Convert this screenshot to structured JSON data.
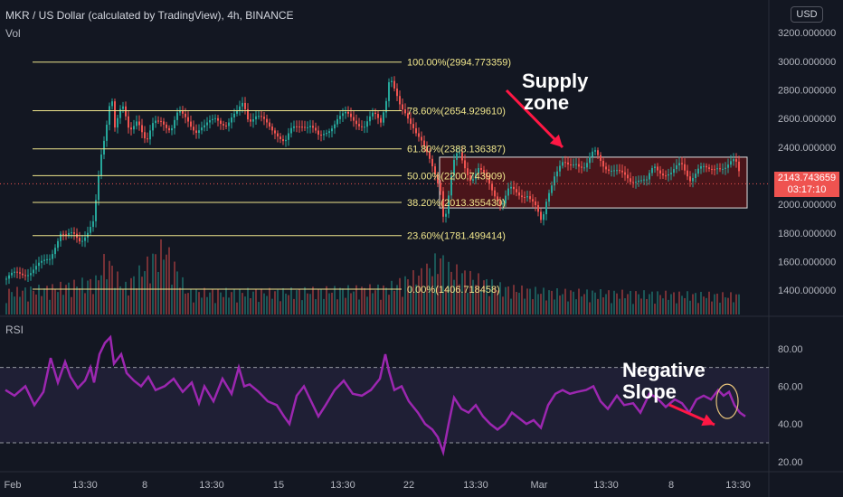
{
  "header": {
    "title": "MKR / US Dollar (calculated by TradingView), 4h, BINANCE",
    "volume_label": "Vol",
    "currency_button": "USD"
  },
  "price_badge": {
    "price": "2143.743659",
    "countdown": "03:17:10"
  },
  "annotations": {
    "supply_line1": "Supply",
    "supply_line2": "zone",
    "slope_line1": "Negative",
    "slope_line2": "Slope"
  },
  "colors": {
    "background": "#131722",
    "up": "#26a69a",
    "down": "#ef5350",
    "fib": "#f0e68c",
    "rsi": "#9c27b0",
    "arrow": "#ff1744"
  },
  "chart_data": [
    {
      "type": "candlestick",
      "title": "MKR / US Dollar (calculated by TradingView), 4h, BINANCE",
      "x_ticks": [
        "Feb",
        "13:30",
        "8",
        "13:30",
        "15",
        "13:30",
        "22",
        "13:30",
        "Mar",
        "13:30",
        "8",
        "13:30"
      ],
      "y_ticks": [
        "1400.000000",
        "1600.000000",
        "1800.000000",
        "2000.000000",
        "2200.000000",
        "2400.000000",
        "2600.000000",
        "2800.000000",
        "3000.000000",
        "3200.000000"
      ],
      "ylim": [
        1230,
        3290
      ],
      "last_price": 2143.743659,
      "fibonacci": [
        {
          "label": "100.00%(2994.773359)",
          "value": 2994.773359
        },
        {
          "label": "78.60%(2654.929610)",
          "value": 2654.92961
        },
        {
          "label": "61.80%(2388.136387)",
          "value": 2388.136387
        },
        {
          "label": "50.00%(2200.743909)",
          "value": 2200.743909
        },
        {
          "label": "38.20%(2013.355430)",
          "value": 2013.35543
        },
        {
          "label": "23.60%(1781.499414)",
          "value": 1781.499414
        },
        {
          "label": "0.00%(1406.718458)",
          "value": 1406.718458
        }
      ],
      "supply_zone": {
        "low": 1975,
        "high": 2330
      },
      "price_path": [
        [
          0,
          1480
        ],
        [
          8,
          1500
        ],
        [
          18,
          1520
        ],
        [
          28,
          1540
        ],
        [
          40,
          1580
        ],
        [
          48,
          1630
        ],
        [
          55,
          1740
        ],
        [
          60,
          1800
        ],
        [
          66,
          1760
        ],
        [
          74,
          1790
        ],
        [
          82,
          1760
        ],
        [
          90,
          1810
        ],
        [
          96,
          1860
        ],
        [
          100,
          2050
        ],
        [
          104,
          2300
        ],
        [
          108,
          2450
        ],
        [
          112,
          2620
        ],
        [
          116,
          2810
        ],
        [
          120,
          2550
        ],
        [
          128,
          2680
        ],
        [
          136,
          2500
        ],
        [
          145,
          2620
        ],
        [
          155,
          2420
        ],
        [
          163,
          2560
        ],
        [
          172,
          2600
        ],
        [
          182,
          2520
        ],
        [
          190,
          2630
        ],
        [
          200,
          2600
        ],
        [
          210,
          2520
        ],
        [
          220,
          2530
        ],
        [
          232,
          2620
        ],
        [
          244,
          2550
        ],
        [
          254,
          2620
        ],
        [
          262,
          2730
        ],
        [
          268,
          2600
        ],
        [
          276,
          2610
        ],
        [
          288,
          2560
        ],
        [
          298,
          2520
        ],
        [
          308,
          2420
        ],
        [
          316,
          2520
        ],
        [
          326,
          2570
        ],
        [
          336,
          2550
        ],
        [
          346,
          2450
        ],
        [
          356,
          2530
        ],
        [
          366,
          2600
        ],
        [
          376,
          2620
        ],
        [
          386,
          2590
        ],
        [
          396,
          2550
        ],
        [
          406,
          2620
        ],
        [
          414,
          2580
        ],
        [
          420,
          2750
        ],
        [
          424,
          2920
        ],
        [
          430,
          2780
        ],
        [
          436,
          2650
        ],
        [
          442,
          2620
        ],
        [
          450,
          2560
        ],
        [
          458,
          2460
        ],
        [
          466,
          2320
        ],
        [
          474,
          2210
        ],
        [
          480,
          2120
        ],
        [
          484,
          1880
        ],
        [
          488,
          2020
        ],
        [
          494,
          2270
        ],
        [
          500,
          2360
        ],
        [
          506,
          2280
        ],
        [
          514,
          2180
        ],
        [
          522,
          2240
        ],
        [
          532,
          2160
        ],
        [
          540,
          2080
        ],
        [
          548,
          2000
        ],
        [
          556,
          2100
        ],
        [
          566,
          2070
        ],
        [
          576,
          2080
        ],
        [
          584,
          1990
        ],
        [
          592,
          1850
        ],
        [
          598,
          2060
        ],
        [
          606,
          2220
        ],
        [
          614,
          2280
        ],
        [
          622,
          2250
        ],
        [
          630,
          2300
        ],
        [
          640,
          2270
        ],
        [
          650,
          2360
        ],
        [
          660,
          2280
        ],
        [
          670,
          2250
        ],
        [
          680,
          2200
        ],
        [
          690,
          2170
        ],
        [
          698,
          2190
        ],
        [
          708,
          2150
        ],
        [
          716,
          2260
        ],
        [
          726,
          2230
        ],
        [
          736,
          2210
        ],
        [
          746,
          2280
        ],
        [
          756,
          2190
        ],
        [
          766,
          2250
        ],
        [
          776,
          2230
        ],
        [
          786,
          2280
        ],
        [
          796,
          2250
        ],
        [
          806,
          2300
        ],
        [
          812,
          2200
        ],
        [
          818,
          2143
        ]
      ],
      "volume_path": [
        [
          0,
          60
        ],
        [
          50,
          70
        ],
        [
          100,
          90
        ],
        [
          110,
          150
        ],
        [
          130,
          70
        ],
        [
          175,
          180
        ],
        [
          200,
          60
        ],
        [
          300,
          60
        ],
        [
          420,
          70
        ],
        [
          460,
          110
        ],
        [
          480,
          150
        ],
        [
          490,
          120
        ],
        [
          550,
          70
        ],
        [
          600,
          60
        ],
        [
          700,
          55
        ],
        [
          818,
          50
        ]
      ]
    },
    {
      "type": "line",
      "title": "RSI",
      "y_ticks": [
        "20.00",
        "40.00",
        "60.00",
        "80.00"
      ],
      "ylim": [
        18,
        89
      ],
      "bands": [
        30,
        70
      ],
      "series": [
        {
          "points": [
            [
              0,
              58
            ],
            [
              10,
              55
            ],
            [
              22,
              60
            ],
            [
              32,
              50
            ],
            [
              42,
              57
            ],
            [
              50,
              75
            ],
            [
              58,
              62
            ],
            [
              66,
              73
            ],
            [
              72,
              65
            ],
            [
              80,
              59
            ],
            [
              88,
              63
            ],
            [
              94,
              70
            ],
            [
              98,
              62
            ],
            [
              104,
              77
            ],
            [
              110,
              83
            ],
            [
              116,
              86
            ],
            [
              120,
              72
            ],
            [
              128,
              77
            ],
            [
              134,
              67
            ],
            [
              142,
              63
            ],
            [
              150,
              60
            ],
            [
              158,
              65
            ],
            [
              166,
              58
            ],
            [
              176,
              60
            ],
            [
              186,
              64
            ],
            [
              196,
              57
            ],
            [
              206,
              62
            ],
            [
              214,
              51
            ],
            [
              220,
              60
            ],
            [
              230,
              52
            ],
            [
              240,
              64
            ],
            [
              250,
              56
            ],
            [
              258,
              70
            ],
            [
              264,
              60
            ],
            [
              270,
              61
            ],
            [
              280,
              57
            ],
            [
              290,
              52
            ],
            [
              300,
              50
            ],
            [
              308,
              44
            ],
            [
              314,
              40
            ],
            [
              322,
              55
            ],
            [
              330,
              60
            ],
            [
              338,
              52
            ],
            [
              346,
              44
            ],
            [
              354,
              50
            ],
            [
              364,
              58
            ],
            [
              374,
              63
            ],
            [
              384,
              56
            ],
            [
              394,
              55
            ],
            [
              404,
              58
            ],
            [
              414,
              64
            ],
            [
              420,
              77
            ],
            [
              424,
              68
            ],
            [
              430,
              58
            ],
            [
              438,
              60
            ],
            [
              446,
              52
            ],
            [
              456,
              46
            ],
            [
              464,
              40
            ],
            [
              472,
              37
            ],
            [
              478,
              33
            ],
            [
              484,
              25
            ],
            [
              490,
              40
            ],
            [
              496,
              54
            ],
            [
              504,
              48
            ],
            [
              512,
              46
            ],
            [
              520,
              50
            ],
            [
              528,
              44
            ],
            [
              536,
              40
            ],
            [
              544,
              37
            ],
            [
              552,
              40
            ],
            [
              560,
              46
            ],
            [
              568,
              43
            ],
            [
              576,
              40
            ],
            [
              584,
              42
            ],
            [
              592,
              38
            ],
            [
              600,
              50
            ],
            [
              608,
              56
            ],
            [
              616,
              58
            ],
            [
              624,
              56
            ],
            [
              632,
              57
            ],
            [
              642,
              58
            ],
            [
              650,
              60
            ],
            [
              658,
              52
            ],
            [
              666,
              48
            ],
            [
              676,
              55
            ],
            [
              684,
              50
            ],
            [
              694,
              51
            ],
            [
              702,
              46
            ],
            [
              712,
              56
            ],
            [
              720,
              54
            ],
            [
              730,
              49
            ],
            [
              740,
              53
            ],
            [
              748,
              51
            ],
            [
              756,
              46
            ],
            [
              764,
              53
            ],
            [
              772,
              55
            ],
            [
              780,
              53
            ],
            [
              788,
              58
            ],
            [
              794,
              55
            ],
            [
              800,
              57
            ],
            [
              806,
              50
            ],
            [
              812,
              46
            ],
            [
              818,
              44
            ]
          ]
        }
      ]
    }
  ]
}
